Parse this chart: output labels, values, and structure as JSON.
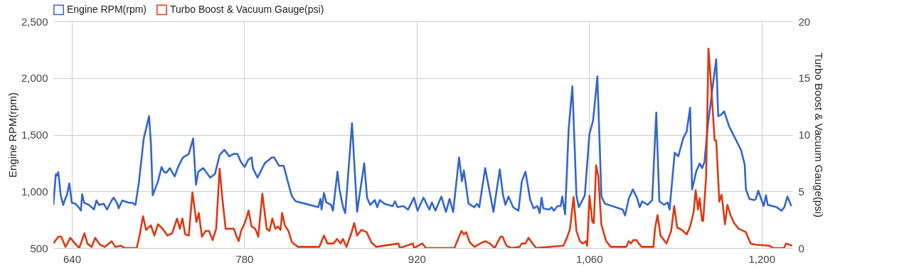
{
  "chart_data": {
    "type": "line",
    "xlim": [
      625,
      1225
    ],
    "xticks": [
      640,
      780,
      920,
      {
        "value": 1060,
        "label": "1,060"
      },
      {
        "value": 1200,
        "label": "1,200"
      }
    ],
    "ylim": [
      500,
      2500
    ],
    "yticks": [
      500,
      {
        "value": 1000,
        "label": "1,000"
      },
      {
        "value": 1500,
        "label": "1,500"
      },
      {
        "value": 2000,
        "label": "2,000"
      },
      {
        "value": 2500,
        "label": "2,500"
      }
    ],
    "y2lim": [
      0,
      20
    ],
    "y2ticks": [
      0,
      5,
      10,
      15,
      20
    ],
    "ylabel": "Engine RPM(rpm)",
    "y2label": "Turbo Boost & Vacuum Gauge(psi)",
    "grid": true,
    "legend": "top left",
    "series": [
      {
        "name": "Engine RPM(rpm)",
        "color": "#3366cc",
        "x": [
          625,
          627,
          628,
          629,
          631,
          633,
          635,
          636,
          638,
          640,
          643,
          645.5,
          647.4,
          648.4,
          650,
          654,
          658,
          660,
          662,
          666,
          668.6,
          672.4,
          674,
          677,
          678,
          681,
          686,
          689,
          691.7,
          694.6,
          698.4,
          702.7,
          704.2,
          705.7,
          710,
          712.9,
          714.8,
          716.7,
          719.6,
          723.5,
          726.3,
          730.2,
          735,
          738.5,
          740.8,
          742.7,
          746.6,
          752.4,
          756.2,
          760,
          763.9,
          767.8,
          771.6,
          774.5,
          777.4,
          780.3,
          783.2,
          786,
          787,
          790.8,
          796.6,
          802.4,
          804.3,
          808.2,
          812,
          816.8,
          818.8,
          821.7,
          829.4,
          840,
          841.9,
          842.8,
          844.7,
          846.7,
          850.5,
          852,
          855.7,
          857.3,
          860.2,
          862,
          867.5,
          871.6,
          877.4,
          879.7,
          882.2,
          886,
          888,
          889.9,
          893.8,
          900.5,
          902.4,
          904.4,
          909.2,
          913,
          917.8,
          920.7,
          925.5,
          930.3,
          932.3,
          935.2,
          940,
          943.8,
          946.7,
          949.6,
          954.4,
          956.7,
          958.3,
          962.1,
          966.9,
          968.8,
          970.8,
          975.6,
          982.3,
          987.5,
          990,
          992,
          994.5,
          998.3,
          1002.6,
          1005.4,
          1008.3,
          1012.2,
          1015,
          1018,
          1019.9,
          1021.4,
          1022.8,
          1027.6,
          1029.5,
          1031.4,
          1034.3,
          1036.8,
          1038.2,
          1040.5,
          1043.4,
          1046.4,
          1049.7,
          1051.6,
          1056.5,
          1060.3,
          1063.2,
          1066.7,
          1070,
          1072.8,
          1081.5,
          1087.3,
          1089.2,
          1092.1,
          1095.5,
          1098.8,
          1101.1,
          1103,
          1107.5,
          1111.2,
          1114.5,
          1117,
          1120.9,
          1123.8,
          1125.3,
          1129.5,
          1132.4,
          1136.3,
          1139.2,
          1142,
          1143.6,
          1146.9,
          1149.7,
          1151.7,
          1153.6,
          1156.5,
          1161.3,
          1163.2,
          1164.8,
          1167.1,
          1169.6,
          1173.8,
          1177.7,
          1183.4,
          1186.3,
          1187.3,
          1190.2,
          1194,
          1195.4,
          1197.3,
          1201.7,
          1203.6,
          1205,
          1212.3,
          1216.2,
          1218.5,
          1221,
          1224.2
        ],
        "values": [
          880,
          1150,
          1140,
          1170,
          965,
          880,
          945,
          965,
          1070,
          900,
          890,
          860,
          830,
          975,
          900,
          880,
          840,
          920,
          880,
          890,
          840,
          920,
          945,
          890,
          850,
          920,
          900,
          900,
          880,
          1090,
          1466,
          1664,
          1424,
          965,
          1090,
          1215,
          1173,
          1163,
          1205,
          1132,
          1215,
          1299,
          1330,
          1466,
          1058,
          1173,
          1205,
          1121,
          1153,
          1320,
          1366,
          1309,
          1330,
          1330,
          1257,
          1215,
          1278,
          1299,
          1205,
          1121,
          1247,
          1299,
          1299,
          1226,
          1226,
          1028,
          954,
          912,
          891,
          860,
          933,
          839,
          985,
          902,
          881,
          829,
          1173,
          1017,
          860,
          808,
          1602,
          818,
          1247,
          944,
          881,
          923,
          860,
          923,
          891,
          870,
          912,
          860,
          870,
          839,
          944,
          829,
          944,
          839,
          902,
          829,
          954,
          818,
          933,
          818,
          1299,
          1090,
          1184,
          891,
          860,
          891,
          860,
          1205,
          818,
          1194,
          975,
          881,
          954,
          860,
          829,
          1090,
          1173,
          923,
          850,
          870,
          808,
          944,
          850,
          839,
          860,
          829,
          870,
          870,
          954,
          797,
          1551,
          1926,
          965,
          860,
          965,
          1509,
          1623,
          2013,
          954,
          891,
          860,
          839,
          787,
          933,
          1017,
          944,
          860,
          912,
          881,
          923,
          1696,
          912,
          881,
          902,
          839,
          1341,
          1309,
          1466,
          1529,
          1738,
          1017,
          1173,
          1247,
          1205,
          1257,
          1591,
          2009,
          2166,
          1664,
          1675,
          1706,
          1570,
          1487,
          1362,
          1236,
          1017,
          933,
          923,
          933,
          1006,
          870,
          965,
          881,
          860,
          829,
          860,
          954,
          870
        ]
      },
      {
        "name": "Turbo Boost & Vacuum Gauge(psi)",
        "color": "#dc3912",
        "axis": "y2",
        "x": [
          625,
          629.1,
          631.4,
          634.9,
          638.8,
          642.6,
          646,
          650.3,
          652.6,
          656.1,
          659,
          662.8,
          666.7,
          672.4,
          675.3,
          680.1,
          683,
          692.7,
          695,
          697.8,
          700.3,
          704.2,
          707.1,
          710,
          713.8,
          717.7,
          721.5,
          725.4,
          727.7,
          729.8,
          732.1,
          735,
          737.9,
          741.2,
          743.1,
          745.6,
          748.5,
          751.4,
          754.3,
          757.2,
          760,
          762.4,
          764.9,
          767.8,
          771.6,
          773.5,
          775.5,
          777.4,
          780.8,
          783.5,
          786,
          788.9,
          791.4,
          794.7,
          798.2,
          800.5,
          802.8,
          805.3,
          807.2,
          809.5,
          810.7,
          813,
          815.9,
          818.8,
          823.6,
          840.9,
          844.7,
          847.6,
          852.5,
          855.3,
          858.2,
          860.2,
          863,
          866.9,
          869.3,
          871.6,
          875.1,
          879.3,
          883.2,
          887,
          905.3,
          906.3,
          916.9,
          917.8,
          924.6,
          927.5,
          950.6,
          956.3,
          958.3,
          960.2,
          963.1,
          966.9,
          971.7,
          975.6,
          979.4,
          983.3,
          988.1,
          989.7,
          992.9,
          996.8,
          1003.5,
          1005.4,
          1008.3,
          1010.8,
          1014.1,
          1017,
          1039.1,
          1042,
          1044.5,
          1047.4,
          1049.7,
          1052.6,
          1054.9,
          1057.4,
          1058.4,
          1060.3,
          1062.6,
          1063.8,
          1065.7,
          1067.4,
          1069.9,
          1073.8,
          1077.6,
          1090.1,
          1092.1,
          1094,
          1095.9,
          1098.4,
          1100.3,
          1102.7,
          1106.5,
          1112.2,
          1113.5,
          1115.5,
          1118,
          1122.8,
          1126.6,
          1129.1,
          1131.5,
          1135.3,
          1139.2,
          1142,
          1144.9,
          1146.5,
          1148.4,
          1149.7,
          1151.7,
          1152.6,
          1155,
          1156.9,
          1159.4,
          1161.9,
          1163.2,
          1165.7,
          1167.6,
          1170.3,
          1172.3,
          1174.8,
          1177.7,
          1181.5,
          1187.3,
          1191.1,
          1195,
          1206.5,
          1209.4,
          1218.1,
          1220,
          1224.8
        ],
        "values": [
          0.4,
          1.0,
          1.0,
          0.1,
          0.9,
          0.4,
          0.0,
          1.3,
          0.4,
          0.1,
          0.9,
          0.3,
          0.1,
          0.6,
          0.1,
          0.2,
          0.0,
          0.0,
          1.1,
          2.8,
          1.6,
          2.0,
          1.1,
          2.1,
          1.7,
          1.1,
          1.3,
          2.6,
          1.7,
          2.6,
          1.2,
          1.1,
          4.9,
          2.3,
          3.1,
          1.0,
          1.5,
          1.5,
          0.7,
          1.7,
          7.0,
          4.2,
          1.7,
          1.7,
          1.7,
          1.1,
          0.6,
          1.5,
          2.3,
          3.3,
          1.9,
          1.7,
          1.0,
          4.8,
          1.7,
          1.5,
          2.6,
          1.7,
          1.9,
          1.6,
          3.1,
          2.0,
          1.5,
          0.5,
          0.1,
          0.1,
          1.1,
          0.4,
          0.4,
          0.8,
          0.4,
          0.8,
          0.1,
          1.3,
          2.2,
          1.1,
          1.6,
          1.4,
          0.5,
          0.1,
          0.4,
          0.0,
          0.4,
          0.0,
          0.4,
          0.0,
          0.0,
          1.5,
          1.2,
          1.4,
          0.5,
          0.1,
          0.4,
          0.6,
          0.4,
          0.0,
          1.0,
          1.0,
          0.2,
          0.0,
          0.1,
          0.4,
          0.4,
          0.9,
          0.4,
          0.0,
          0.2,
          0.9,
          1.7,
          4.5,
          1.5,
          0.6,
          0.4,
          0.6,
          0.2,
          4.6,
          2.3,
          2.2,
          7.3,
          6.4,
          2.1,
          0.6,
          0.1,
          0.1,
          0.6,
          0.4,
          0.7,
          0.7,
          0.4,
          0.1,
          0.1,
          0.1,
          1.7,
          2.9,
          1.1,
          0.4,
          1.5,
          3.7,
          1.8,
          1.6,
          1.2,
          1.9,
          3.2,
          5.1,
          3.4,
          4.4,
          2.4,
          2.4,
          6.3,
          17.6,
          13.8,
          9.5,
          9.5,
          4.1,
          4.7,
          2.1,
          3.8,
          2.9,
          2.2,
          1.7,
          1.4,
          0.4,
          0.3,
          0.2,
          0.0,
          0.0,
          0.4,
          0.2
        ]
      }
    ]
  }
}
